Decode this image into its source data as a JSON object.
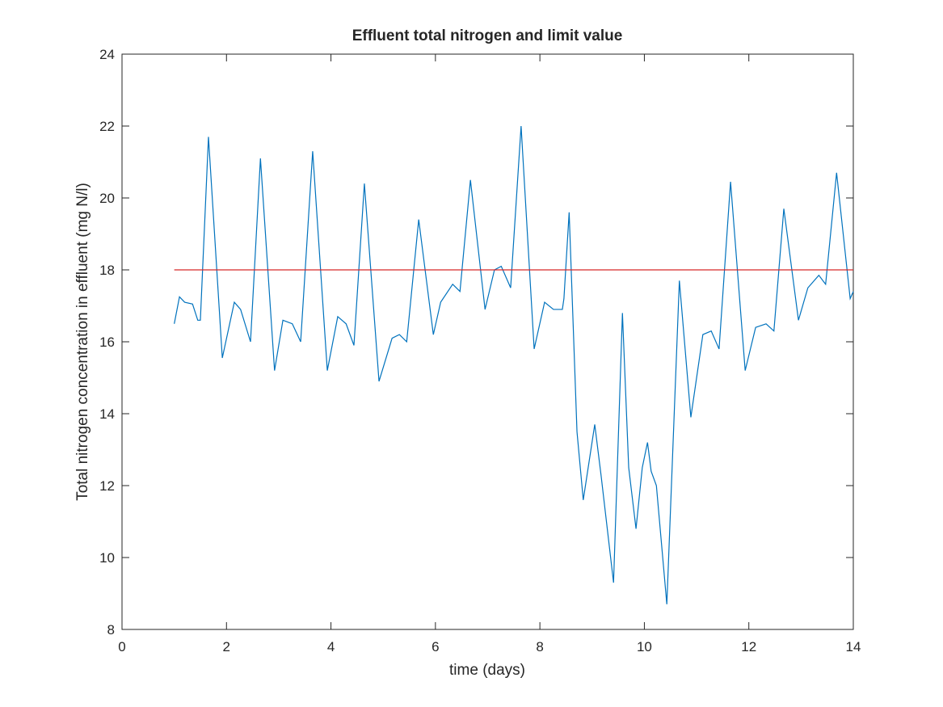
{
  "chart_data": {
    "type": "line",
    "title": "Effluent total nitrogen and limit value",
    "xlabel": "time (days)",
    "ylabel": "Total nitrogen concentration in effluent (mg N/l)",
    "xlim": [
      0,
      14
    ],
    "xticks": [
      0,
      2,
      4,
      6,
      8,
      10,
      12,
      14
    ],
    "ylim": [
      8,
      24
    ],
    "yticks": [
      8,
      10,
      12,
      14,
      16,
      18,
      20,
      22,
      24
    ],
    "series": [
      {
        "color": "#0072bd",
        "x": [
          1,
          1.1,
          1.2,
          1.35,
          1.45,
          1.5,
          1.655,
          1.92,
          2.15,
          2.27,
          2.46,
          2.65,
          2.92,
          3.08,
          3.26,
          3.42,
          3.65,
          3.93,
          4.13,
          4.29,
          4.44,
          4.64,
          4.92,
          5.17,
          5.31,
          5.45,
          5.68,
          5.96,
          6.1,
          6.33,
          6.47,
          6.67,
          6.95,
          7.13,
          7.26,
          7.44,
          7.64,
          7.89,
          8.09,
          8.26,
          8.43,
          8.46,
          8.56,
          8.71,
          8.83,
          9.05,
          9.17,
          9.41,
          9.58,
          9.7,
          9.84,
          9.96,
          10.06,
          10.13,
          10.23,
          10.43,
          10.67,
          10.89,
          11.12,
          11.28,
          11.43,
          11.65,
          11.93,
          12.13,
          12.33,
          12.48,
          12.67,
          12.95,
          13.13,
          13.34,
          13.47,
          13.68,
          13.94,
          14
        ],
        "values": [
          16.5,
          17.25,
          17.1,
          17.05,
          16.6,
          16.6,
          21.7,
          15.55,
          17.1,
          16.9,
          16.0,
          21.1,
          15.2,
          16.6,
          16.5,
          16.0,
          21.3,
          15.2,
          16.7,
          16.5,
          15.9,
          20.4,
          14.9,
          16.1,
          16.2,
          16.0,
          19.4,
          16.2,
          17.1,
          17.6,
          17.4,
          20.5,
          16.9,
          18.0,
          18.1,
          17.5,
          22.0,
          15.8,
          17.1,
          16.9,
          16.9,
          17.2,
          19.6,
          13.5,
          11.6,
          13.7,
          12.3,
          9.3,
          16.8,
          12.5,
          10.8,
          12.5,
          13.2,
          12.4,
          12.0,
          8.7,
          17.7,
          13.9,
          16.2,
          16.3,
          15.8,
          20.45,
          15.2,
          16.4,
          16.5,
          16.3,
          19.7,
          16.6,
          17.5,
          17.85,
          17.6,
          20.7,
          17.2,
          17.4
        ]
      },
      {
        "color": "#d62728",
        "x": [
          1,
          14
        ],
        "values": [
          18,
          18
        ]
      }
    ]
  }
}
